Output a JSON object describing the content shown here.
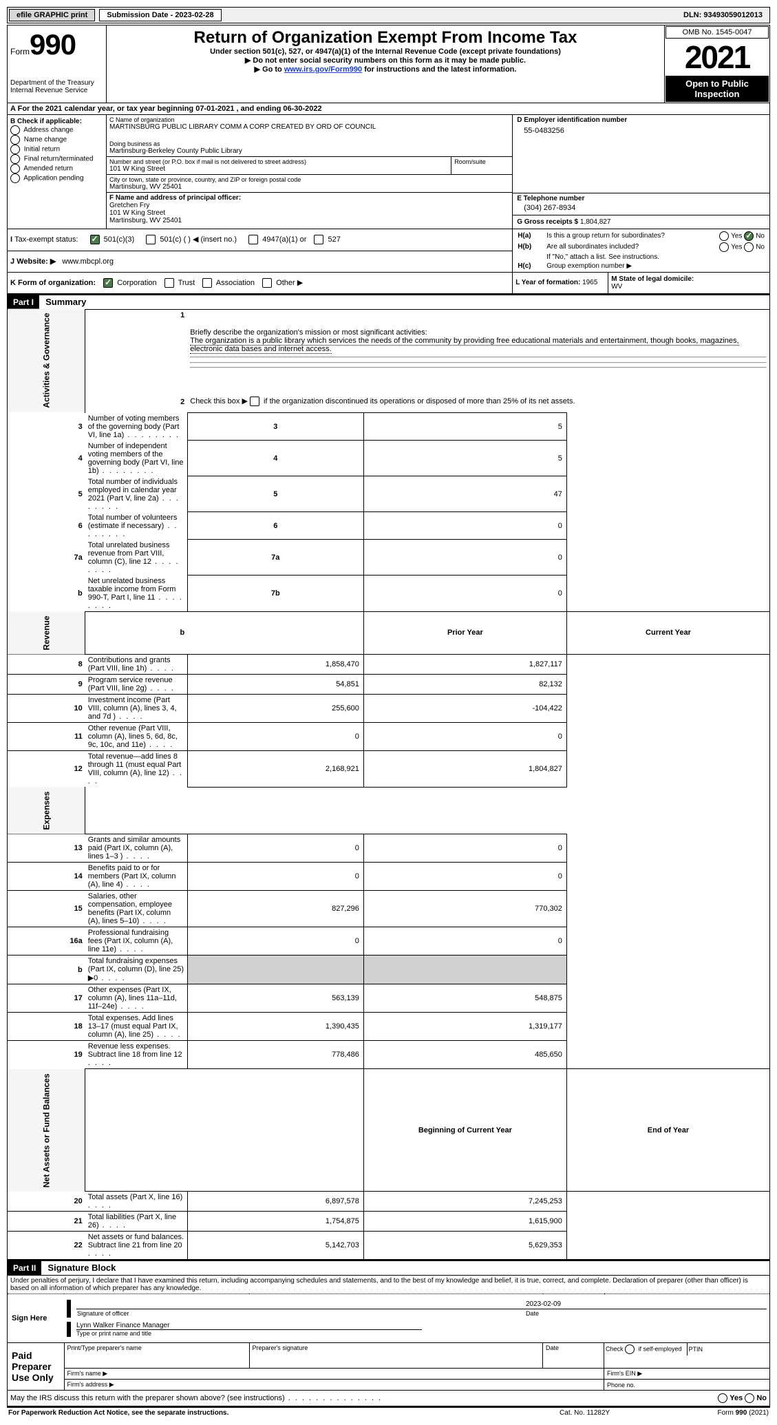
{
  "topbar": {
    "efile": "efile GRAPHIC print",
    "submission_label": "Submission Date - 2023-02-28",
    "dln": "DLN: 93493059012013"
  },
  "header": {
    "form_label": "Form",
    "form_num": "990",
    "dept1": "Department of the Treasury",
    "dept2": "Internal Revenue Service",
    "title": "Return of Organization Exempt From Income Tax",
    "subtitle": "Under section 501(c), 527, or 4947(a)(1) of the Internal Revenue Code (except private foundations)",
    "note1": "Do not enter social security numbers on this form as it may be made public.",
    "note2_pre": "Go to ",
    "note2_link": "www.irs.gov/Form990",
    "note2_post": " for instructions and the latest information.",
    "omb": "OMB No. 1545-0047",
    "year": "2021",
    "open": "Open to Public Inspection"
  },
  "lineA": "For the 2021 calendar year, or tax year beginning 07-01-2021    , and ending 06-30-2022",
  "boxB": {
    "title": "B Check if applicable:",
    "items": [
      "Address change",
      "Name change",
      "Initial return",
      "Final return/terminated",
      "Amended return",
      "Application pending"
    ]
  },
  "boxC": {
    "label": "C Name of organization",
    "org": "MARTINSBURG PUBLIC LIBRARY COMM A CORP CREATED BY ORD OF COUNCIL",
    "dba_label": "Doing business as",
    "dba": "Martinsburg-Berkeley County Public Library",
    "addr_label": "Number and street (or P.O. box if mail is not delivered to street address)",
    "room_label": "Room/suite",
    "addr": "101 W King Street",
    "city_label": "City or town, state or province, country, and ZIP or foreign postal code",
    "city": "Martinsburg, WV  25401"
  },
  "boxD": {
    "label": "D Employer identification number",
    "val": "55-0483256"
  },
  "boxE": {
    "label": "E Telephone number",
    "val": "(304) 267-8934"
  },
  "boxG": {
    "label": "G Gross receipts $",
    "val": "1,804,827"
  },
  "boxF": {
    "label": "F  Name and address of principal officer:",
    "name": "Gretchen Fry",
    "addr1": "101 W King Street",
    "addr2": "Martinsburg, WV  25401"
  },
  "boxH": {
    "a_label": "Is this a group return for subordinates?",
    "b_label": "Are all subordinates included?",
    "b_note": "If \"No,\" attach a list. See instructions.",
    "c_label": "Group exemption number ▶",
    "yes": "Yes",
    "no": "No"
  },
  "lineI": {
    "label": "Tax-exempt status:",
    "opt1": "501(c)(3)",
    "opt2": "501(c) (   ) ◀ (insert no.)",
    "opt3": "4947(a)(1) or",
    "opt4": "527"
  },
  "lineJ": {
    "label": "Website: ▶",
    "val": "www.mbcpl.org"
  },
  "lineK": {
    "label": "K Form of organization:",
    "opts": [
      "Corporation",
      "Trust",
      "Association",
      "Other ▶"
    ]
  },
  "lineL": {
    "label": "L Year of formation:",
    "val": "1965"
  },
  "lineM": {
    "label": "M State of legal domicile:",
    "val": "WV"
  },
  "part1": {
    "title": "Part I",
    "name": "Summary",
    "q1": "Briefly describe the organization's mission or most significant activities:",
    "q1_text": "The organization is a public library which services the needs of the community by providing free educational materials and entertainment, though books, magazines, electronic data bases and internet access.",
    "q2": "Check this box ▶     if the organization discontinued its operations or disposed of more than 25% of its net assets.",
    "rows_ag": [
      {
        "n": "3",
        "t": "Number of voting members of the governing body (Part VI, line 1a)",
        "box": "3",
        "v": "5"
      },
      {
        "n": "4",
        "t": "Number of independent voting members of the governing body (Part VI, line 1b)",
        "box": "4",
        "v": "5"
      },
      {
        "n": "5",
        "t": "Total number of individuals employed in calendar year 2021 (Part V, line 2a)",
        "box": "5",
        "v": "47"
      },
      {
        "n": "6",
        "t": "Total number of volunteers (estimate if necessary)",
        "box": "6",
        "v": "0"
      },
      {
        "n": "7a",
        "t": "Total unrelated business revenue from Part VIII, column (C), line 12",
        "box": "7a",
        "v": "0"
      },
      {
        "n": "b",
        "t": "Net unrelated business taxable income from Form 990-T, Part I, line 11",
        "box": "7b",
        "v": "0"
      }
    ],
    "col_prior": "Prior Year",
    "col_current": "Current Year",
    "rows_rev": [
      {
        "n": "8",
        "t": "Contributions and grants (Part VIII, line 1h)",
        "p": "1,858,470",
        "c": "1,827,117"
      },
      {
        "n": "9",
        "t": "Program service revenue (Part VIII, line 2g)",
        "p": "54,851",
        "c": "82,132"
      },
      {
        "n": "10",
        "t": "Investment income (Part VIII, column (A), lines 3, 4, and 7d )",
        "p": "255,600",
        "c": "-104,422"
      },
      {
        "n": "11",
        "t": "Other revenue (Part VIII, column (A), lines 5, 6d, 8c, 9c, 10c, and 11e)",
        "p": "0",
        "c": "0"
      },
      {
        "n": "12",
        "t": "Total revenue—add lines 8 through 11 (must equal Part VIII, column (A), line 12)",
        "p": "2,168,921",
        "c": "1,804,827"
      }
    ],
    "rows_exp": [
      {
        "n": "13",
        "t": "Grants and similar amounts paid (Part IX, column (A), lines 1–3 )",
        "p": "0",
        "c": "0"
      },
      {
        "n": "14",
        "t": "Benefits paid to or for members (Part IX, column (A), line 4)",
        "p": "0",
        "c": "0"
      },
      {
        "n": "15",
        "t": "Salaries, other compensation, employee benefits (Part IX, column (A), lines 5–10)",
        "p": "827,296",
        "c": "770,302"
      },
      {
        "n": "16a",
        "t": "Professional fundraising fees (Part IX, column (A), line 11e)",
        "p": "0",
        "c": "0"
      },
      {
        "n": "b",
        "t": "Total fundraising expenses (Part IX, column (D), line 25) ▶0",
        "p": "",
        "c": "",
        "grey": true
      },
      {
        "n": "17",
        "t": "Other expenses (Part IX, column (A), lines 11a–11d, 11f–24e)",
        "p": "563,139",
        "c": "548,875"
      },
      {
        "n": "18",
        "t": "Total expenses. Add lines 13–17 (must equal Part IX, column (A), line 25)",
        "p": "1,390,435",
        "c": "1,319,177"
      },
      {
        "n": "19",
        "t": "Revenue less expenses. Subtract line 18 from line 12",
        "p": "778,486",
        "c": "485,650"
      }
    ],
    "col_begin": "Beginning of Current Year",
    "col_end": "End of Year",
    "rows_net": [
      {
        "n": "20",
        "t": "Total assets (Part X, line 16)",
        "p": "6,897,578",
        "c": "7,245,253"
      },
      {
        "n": "21",
        "t": "Total liabilities (Part X, line 26)",
        "p": "1,754,875",
        "c": "1,615,900"
      },
      {
        "n": "22",
        "t": "Net assets or fund balances. Subtract line 21 from line 20",
        "p": "5,142,703",
        "c": "5,629,353"
      }
    ]
  },
  "part2": {
    "title": "Part II",
    "name": "Signature Block",
    "decl": "Under penalties of perjury, I declare that I have examined this return, including accompanying schedules and statements, and to the best of my knowledge and belief, it is true, correct, and complete. Declaration of preparer (other than officer) is based on all information of which preparer has any knowledge.",
    "sign_here": "Sign Here",
    "sig_officer": "Signature of officer",
    "sig_date": "Date",
    "sig_date_val": "2023-02-09",
    "sig_name": "Lynn Walker  Finance Manager",
    "sig_type": "Type or print name and title",
    "paid": "Paid Preparer Use Only",
    "prep_name": "Print/Type preparer's name",
    "prep_sig": "Preparer's signature",
    "prep_date": "Date",
    "prep_check": "Check        if self-employed",
    "prep_ptin": "PTIN",
    "firm_name": "Firm's name   ▶",
    "firm_ein": "Firm's EIN ▶",
    "firm_addr": "Firm's address ▶",
    "firm_phone": "Phone no.",
    "discuss": "May the IRS discuss this return with the preparer shown above? (see instructions)",
    "paperwork": "For Paperwork Reduction Act Notice, see the separate instructions.",
    "cat": "Cat. No. 11282Y",
    "formfoot": "Form 990 (2021)"
  },
  "side_labels": {
    "ag": "Activities & Governance",
    "rev": "Revenue",
    "exp": "Expenses",
    "net": "Net Assets or Fund Balances"
  }
}
